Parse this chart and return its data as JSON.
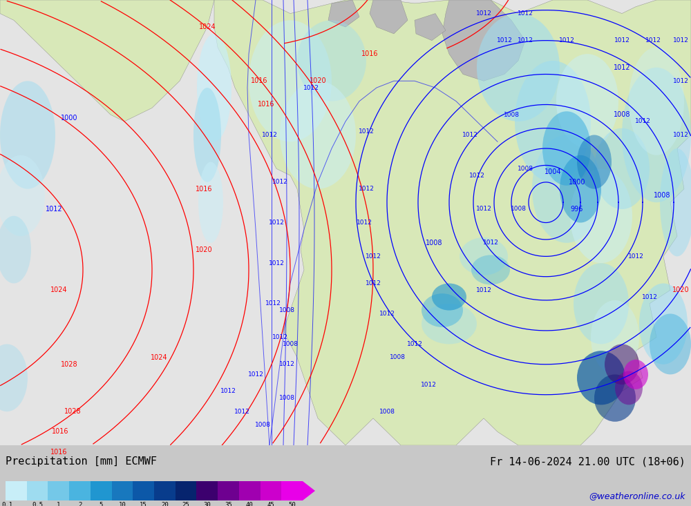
{
  "title_left": "Precipitation [mm] ECMWF",
  "title_right": "Fr 14-06-2024 21.00 UTC (18+06)",
  "watermark": "@weatheronline.co.uk",
  "colorbar_labels": [
    "0.1",
    "0.5",
    "1",
    "2",
    "5",
    "10",
    "15",
    "20",
    "25",
    "30",
    "35",
    "40",
    "45",
    "50"
  ],
  "colorbar_colors": [
    "#c8eef8",
    "#9edcf0",
    "#74c8e8",
    "#4ab4e0",
    "#2096d0",
    "#1878be",
    "#0c58a8",
    "#083c8c",
    "#06246e",
    "#3c006e",
    "#6e0090",
    "#a000b0",
    "#cc00cc",
    "#e800e8"
  ],
  "ocean_color": "#e8e8e8",
  "land_color": "#d8e8b8",
  "gray_land_color": "#b8b8b8",
  "fig_width": 10.0,
  "fig_height": 7.33,
  "bottom_bar_color": "#c8c8c8",
  "text_color": "#000000",
  "watermark_color": "#0000cc"
}
